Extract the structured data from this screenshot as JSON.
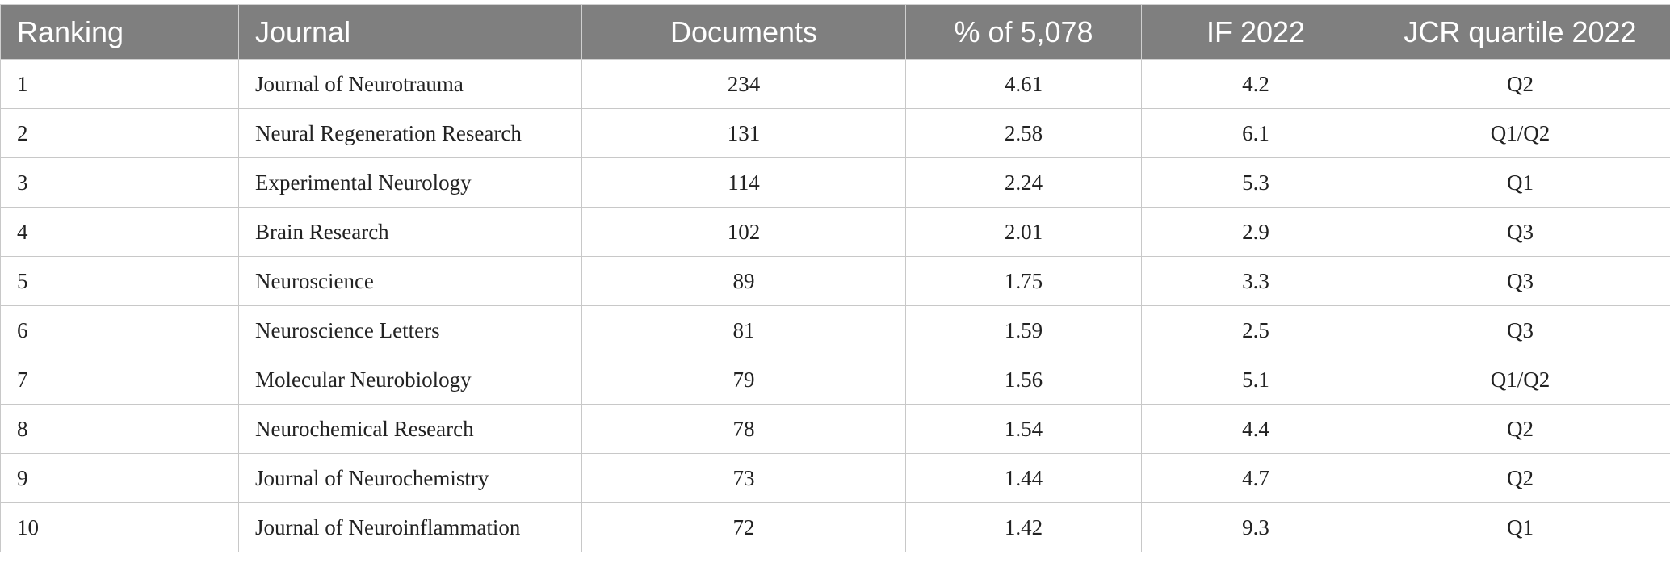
{
  "table": {
    "header": [
      "Ranking",
      "Journal",
      "Documents",
      "% of 5,078",
      "IF 2022",
      "JCR quartile 2022"
    ],
    "rows": [
      [
        "1",
        "Journal of Neurotrauma",
        "234",
        "4.61",
        "4.2",
        "Q2"
      ],
      [
        "2",
        "Neural Regeneration Research",
        "131",
        "2.58",
        "6.1",
        "Q1/Q2"
      ],
      [
        "3",
        "Experimental Neurology",
        "114",
        "2.24",
        "5.3",
        "Q1"
      ],
      [
        "4",
        "Brain Research",
        "102",
        "2.01",
        "2.9",
        "Q3"
      ],
      [
        "5",
        "Neuroscience",
        "89",
        "1.75",
        "3.3",
        "Q3"
      ],
      [
        "6",
        "Neuroscience Letters",
        "81",
        "1.59",
        "2.5",
        "Q3"
      ],
      [
        "7",
        "Molecular Neurobiology",
        "79",
        "1.56",
        "5.1",
        "Q1/Q2"
      ],
      [
        "8",
        "Neurochemical Research",
        "78",
        "1.54",
        "4.4",
        "Q2"
      ],
      [
        "9",
        "Journal of Neurochemistry",
        "73",
        "1.44",
        "4.7",
        "Q2"
      ],
      [
        "10",
        "Journal of Neuroinflammation",
        "72",
        "1.42",
        "9.3",
        "Q1"
      ]
    ]
  }
}
